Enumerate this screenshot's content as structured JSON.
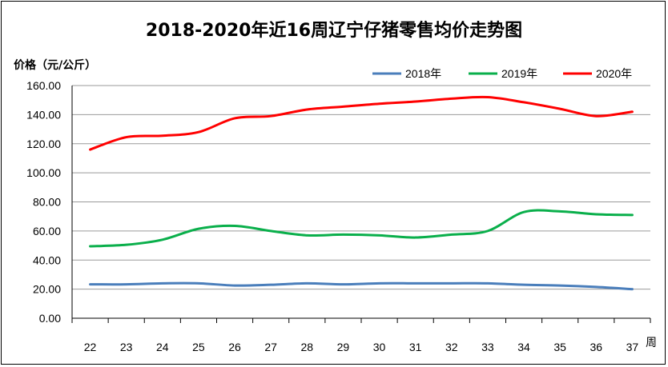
{
  "chart_data": {
    "type": "line",
    "title": "2018-2020年近16周辽宁仔猪零售均价走势图",
    "ylabel": "价格（元/公斤）",
    "xlabel": "周",
    "categories": [
      "22",
      "23",
      "24",
      "25",
      "26",
      "27",
      "28",
      "29",
      "30",
      "31",
      "32",
      "33",
      "34",
      "35",
      "36",
      "37"
    ],
    "ylim": [
      0,
      160
    ],
    "yticks": [
      "0.00",
      "20.00",
      "40.00",
      "60.00",
      "80.00",
      "100.00",
      "120.00",
      "140.00",
      "160.00"
    ],
    "grid": true,
    "legend_position": "top-right",
    "series": [
      {
        "name": "2018年",
        "color": "#4A7EBB",
        "values": [
          23.3,
          23.3,
          24.0,
          24.0,
          22.5,
          23.0,
          24.0,
          23.3,
          24.0,
          24.0,
          24.0,
          24.0,
          23.0,
          22.5,
          21.5,
          20.0
        ]
      },
      {
        "name": "2019年",
        "color": "#0AAF4B",
        "values": [
          49.5,
          50.5,
          54.0,
          61.5,
          63.5,
          60.0,
          57.0,
          57.5,
          57.0,
          55.5,
          57.5,
          60.0,
          73.0,
          73.5,
          71.5,
          71.0
        ]
      },
      {
        "name": "2020年",
        "color": "#FF0000",
        "values": [
          116.0,
          124.5,
          125.5,
          128.0,
          137.5,
          139.0,
          143.5,
          145.5,
          147.5,
          149.0,
          151.0,
          152.0,
          148.5,
          144.0,
          139.0,
          142.0
        ]
      }
    ]
  }
}
